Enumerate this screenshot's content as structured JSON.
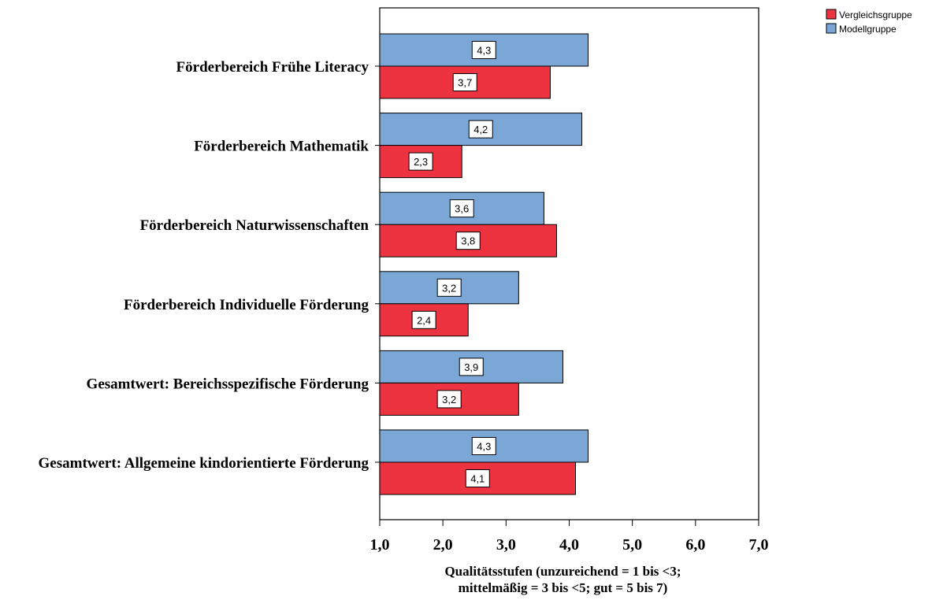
{
  "chart_data": {
    "type": "bar",
    "orientation": "horizontal",
    "categories": [
      "Förderbereich Frühe Literacy",
      "Förderbereich Mathematik",
      "Förderbereich Naturwissenschaften",
      "Förderbereich Individuelle Förderung",
      "Gesamtwert: Bereichsspezifische Förderung",
      "Gesamtwert: Allgemeine kindorientierte Förderung"
    ],
    "series": [
      {
        "name": "Modellgruppe",
        "color": "#7BA7D7",
        "values": [
          4.3,
          4.2,
          3.6,
          3.2,
          3.9,
          4.3
        ],
        "value_labels": [
          "4,3",
          "4,2",
          "3,6",
          "3,2",
          "3,9",
          "4,3"
        ]
      },
      {
        "name": "Vergleichsgruppe",
        "color": "#EE3340",
        "values": [
          3.7,
          2.3,
          3.8,
          2.4,
          3.2,
          4.1
        ],
        "value_labels": [
          "3,7",
          "2,3",
          "3,8",
          "2,4",
          "3,2",
          "4,1"
        ]
      }
    ],
    "xlim": [
      1.0,
      7.0
    ],
    "xticks": [
      1,
      2,
      3,
      4,
      5,
      6,
      7
    ],
    "xtick_labels": [
      "1,0",
      "2,0",
      "3,0",
      "4,0",
      "5,0",
      "6,0",
      "7,0"
    ],
    "xlabel_lines": [
      "Qualitätsstufen (unzureichend = 1 bis <3;",
      "mittelmäßig = 3 bis <5; gut = 5 bis 7)"
    ],
    "ylabel": "",
    "title": "",
    "legend": {
      "placement": "top-right",
      "entries": [
        {
          "name": "Vergleichsgruppe",
          "color": "#EE3340"
        },
        {
          "name": "Modellgruppe",
          "color": "#7BA7D7"
        }
      ]
    },
    "grid": false
  }
}
